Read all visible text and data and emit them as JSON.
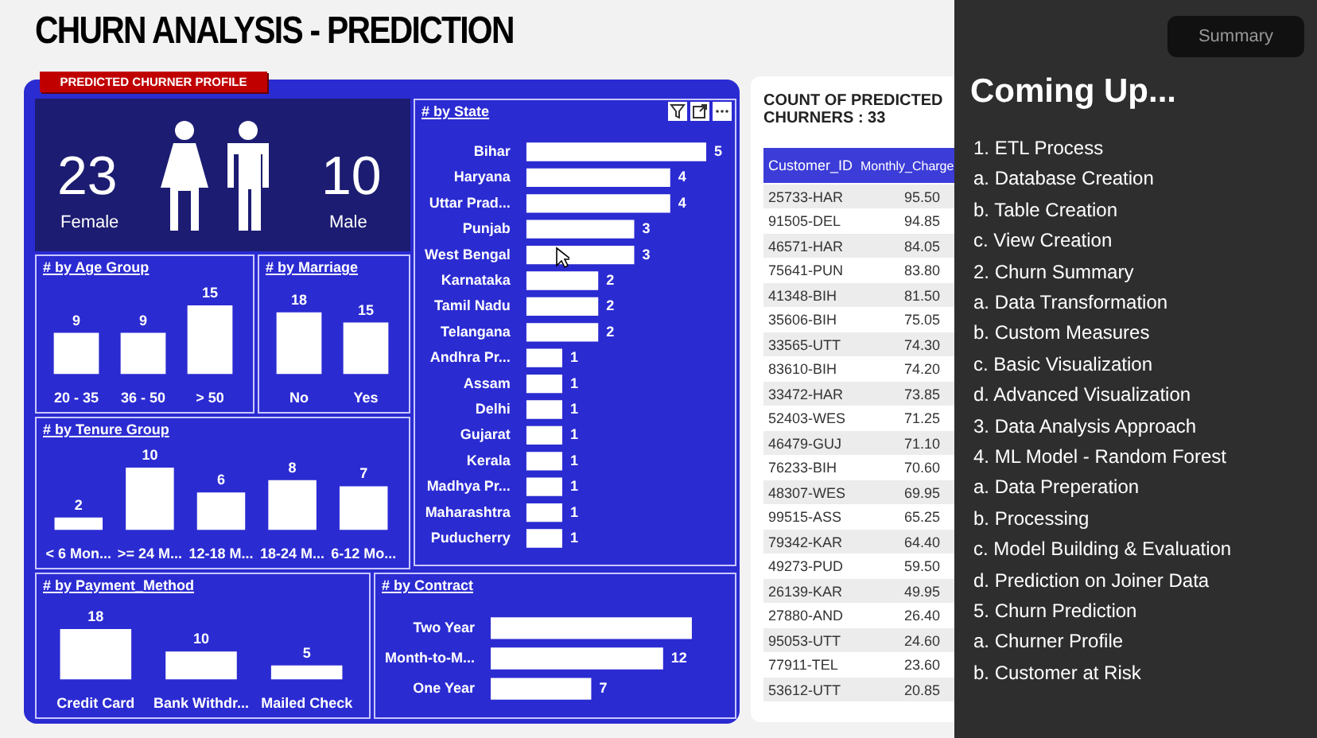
{
  "chart_data": [
    {
      "type": "other",
      "title": "CHURN ANALYSIS - PREDICTION",
      "subtitle": "PREDICTED CHURNER PROFILE",
      "annotations": [
        "23",
        "Female",
        "10",
        "Male"
      ]
    },
    {
      "type": "bar",
      "title": "# by Age Group",
      "categories": [
        "20 - 35",
        "36 - 50",
        "> 50"
      ],
      "values": [
        9,
        9,
        15
      ],
      "color": "#ffffff",
      "data_labels": true
    },
    {
      "type": "bar",
      "title": "# by Marriage",
      "categories": [
        "No",
        "Yes"
      ],
      "values": [
        18,
        15
      ],
      "color": "#ffffff",
      "data_labels": true
    },
    {
      "type": "bar",
      "title": "# by State",
      "orientation": "horizontal",
      "categories": [
        "Bihar",
        "Haryana",
        "Uttar Prad...",
        "Punjab",
        "West Bengal",
        "Karnataka",
        "Tamil Nadu",
        "Telangana",
        "Andhra Pr...",
        "Assam",
        "Delhi",
        "Gujarat",
        "Kerala",
        "Madhya Pr...",
        "Maharashtra",
        "Puducherry"
      ],
      "values": [
        5,
        4,
        4,
        3,
        3,
        2,
        2,
        2,
        1,
        1,
        1,
        1,
        1,
        1,
        1,
        1
      ],
      "color": "#ffffff",
      "data_labels": true
    },
    {
      "type": "bar",
      "title": "# by Tenure Group",
      "categories": [
        "< 6 Mon...",
        ">= 24 M...",
        "12-18 M...",
        "18-24 M...",
        "6-12 Mo..."
      ],
      "values": [
        2,
        10,
        6,
        8,
        7
      ],
      "color": "#ffffff",
      "data_labels": true
    },
    {
      "type": "bar",
      "title": "# by Payment_Method",
      "categories": [
        "Credit Card",
        "Bank Withdr...",
        "Mailed Check"
      ],
      "values": [
        18,
        10,
        5
      ],
      "color": "#ffffff",
      "data_labels": true
    },
    {
      "type": "bar",
      "title": "# by Contract",
      "orientation": "horizontal",
      "categories": [
        "Two Year",
        "Month-to-M...",
        "One Year"
      ],
      "values": [
        14,
        12,
        7
      ],
      "color": "#ffffff",
      "value_labels": [
        null,
        "12",
        "7"
      ]
    },
    {
      "type": "other",
      "title": "COUNT OF PREDICTED CHURNERS : 33",
      "annotations": [
        "Customer_ID",
        "Monthly_Charge",
        "25733-HAR",
        "95.50",
        "91505-DEL",
        "94.85",
        "46571-HAR",
        "84.05",
        "75641-PUN",
        "83.80",
        "41348-BIH",
        "81.50",
        "35606-BIH",
        "75.05",
        "33565-UTT",
        "74.30",
        "83610-BIH",
        "74.20",
        "33472-HAR",
        "73.85",
        "52403-WES",
        "71.25",
        "46479-GUJ",
        "71.10",
        "76233-BIH",
        "70.60",
        "48307-WES",
        "69.95",
        "99515-ASS",
        "65.25",
        "79342-KAR",
        "64.40",
        "49273-PUD",
        "59.50",
        "26139-KAR",
        "49.95",
        "27880-AND",
        "26.40",
        "95053-UTT",
        "24.60",
        "77911-TEL",
        "23.60",
        "53612-UTT",
        "20.85"
      ]
    },
    {
      "type": "other",
      "title": "Coming Up...",
      "subtitle": "Summary",
      "annotations": [
        "1. ETL Process",
        "a. Database Creation",
        "b. Table Creation",
        "c. View Creation",
        "2. Churn Summary",
        "a. Data Transformation",
        "b. Custom Measures",
        "c. Basic Visualization",
        "d. Advanced Visualization",
        "3. Data Analysis Approach",
        "4. ML Model - Random Forest",
        "a. Data Preperation",
        "b. Processing",
        "c. Model Building & Evaluation",
        "d. Prediction on Joiner Data",
        "5. Churn Prediction",
        "a. Churner Profile",
        "b. Customer at Risk"
      ]
    }
  ]
}
